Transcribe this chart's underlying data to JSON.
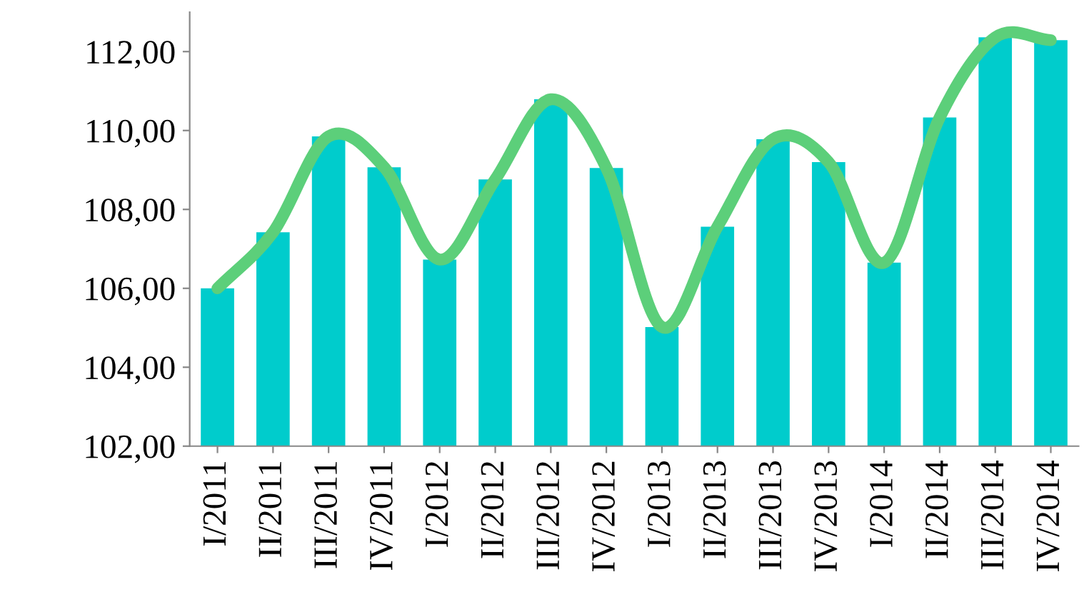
{
  "chart_data": {
    "type": "bar",
    "categories": [
      "I/2011",
      "II/2011",
      "III/2011",
      "IV/2011",
      "I/2012",
      "II/2012",
      "III/2012",
      "IV/2012",
      "I/2013",
      "II/2013",
      "III/2013",
      "IV/2013",
      "I/2014",
      "II/2014",
      "III/2014",
      "IV/2014"
    ],
    "series": [
      {
        "color": "#00cccc",
        "values": [
          106.0,
          107.42,
          109.85,
          109.07,
          106.73,
          108.76,
          110.79,
          109.05,
          105.02,
          107.56,
          109.78,
          109.2,
          106.65,
          110.33,
          112.36,
          112.29
        ]
      },
      {
        "type": "line",
        "color": "#5ccf7a",
        "values": [
          106.0,
          107.42,
          109.85,
          109.07,
          106.73,
          108.76,
          110.79,
          109.05,
          105.02,
          107.56,
          109.78,
          109.2,
          106.65,
          110.33,
          112.36,
          112.29
        ]
      }
    ],
    "ylim": [
      102,
      113
    ],
    "yticks": [
      {
        "value": 102,
        "label": "102,00"
      },
      {
        "value": 104,
        "label": "104,00"
      },
      {
        "value": 106,
        "label": "106,00"
      },
      {
        "value": 108,
        "label": "108,00"
      },
      {
        "value": 110,
        "label": "110,00"
      },
      {
        "value": 112,
        "label": "112,00"
      }
    ],
    "grid": false,
    "legend": false
  }
}
